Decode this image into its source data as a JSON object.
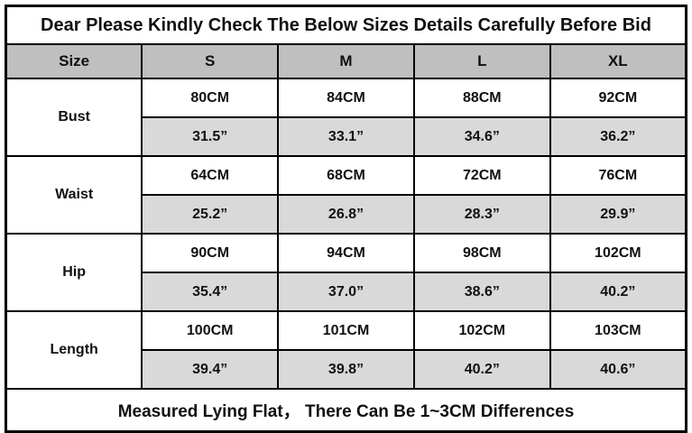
{
  "chart_data": {
    "type": "table",
    "title": "Dear Please Kindly Check The Below Sizes Details Carefully Before Bid",
    "header": {
      "size_label": "Size",
      "columns": [
        "S",
        "M",
        "L",
        "XL"
      ]
    },
    "rows": [
      {
        "label": "Bust",
        "cm": [
          "80CM",
          "84CM",
          "88CM",
          "92CM"
        ],
        "inch": [
          "31.5”",
          "33.1”",
          "34.6”",
          "36.2”"
        ]
      },
      {
        "label": "Waist",
        "cm": [
          "64CM",
          "68CM",
          "72CM",
          "76CM"
        ],
        "inch": [
          "25.2”",
          "26.8”",
          "28.3”",
          "29.9”"
        ]
      },
      {
        "label": "Hip",
        "cm": [
          "90CM",
          "94CM",
          "98CM",
          "102CM"
        ],
        "inch": [
          "35.4”",
          "37.0”",
          "38.6”",
          "40.2”"
        ]
      },
      {
        "label": "Length",
        "cm": [
          "100CM",
          "101CM",
          "102CM",
          "103CM"
        ],
        "inch": [
          "39.4”",
          "39.8”",
          "40.2”",
          "40.6”"
        ]
      }
    ],
    "footer": "Measured Lying Flat， There Can Be 1~3CM Differences",
    "units": [
      "CM",
      "inch"
    ],
    "layout_hints": {
      "header_bg": "#bfbfbf",
      "inch_row_bg": "#d9d9d9",
      "cm_row_bg": "#ffffff",
      "border_color": "#000000",
      "text_color": "#111111"
    }
  }
}
